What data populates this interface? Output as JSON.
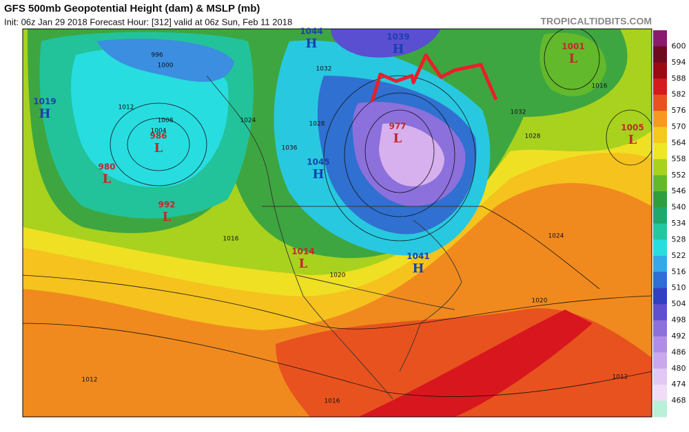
{
  "header": {
    "title": "GFS 500mb Geopotential Height (dam) & MSLP (mb)",
    "subtitle": "Init: 06z Jan 29 2018   Forecast Hour: [312]   valid at 06z Sun, Feb 11 2018",
    "site": "TROPICALTIDBITS.COM"
  },
  "colorbar": {
    "levels": [
      "600",
      "594",
      "588",
      "582",
      "576",
      "570",
      "564",
      "558",
      "552",
      "546",
      "540",
      "534",
      "528",
      "522",
      "516",
      "510",
      "504",
      "498",
      "492",
      "486",
      "480",
      "474",
      "468"
    ],
    "colors": [
      "#8a1a6e",
      "#6e0a20",
      "#9a0a14",
      "#d41a1e",
      "#e8521f",
      "#f59a1e",
      "#f5c81e",
      "#efe724",
      "#a8d21e",
      "#62b92c",
      "#2e9e3e",
      "#1fa86e",
      "#22c7a0",
      "#27dde0",
      "#34a8e8",
      "#2d6fd4",
      "#3040c0",
      "#6050d0",
      "#8c70dc",
      "#b08ee8",
      "#c9a8ee",
      "#e2c8f4",
      "#f0dcf7",
      "#b8f0d8"
    ]
  },
  "centers": [
    {
      "letter": "H",
      "value": "1019"
    },
    {
      "letter": "L",
      "value": "986"
    },
    {
      "letter": "L",
      "value": "980"
    },
    {
      "letter": "L",
      "value": "992"
    },
    {
      "letter": "H",
      "value": "1044"
    },
    {
      "letter": "H",
      "value": "1039"
    },
    {
      "letter": "L",
      "value": "1001"
    },
    {
      "letter": "L",
      "value": "1005"
    },
    {
      "letter": "L",
      "value": "977"
    },
    {
      "letter": "H",
      "value": "1045"
    },
    {
      "letter": "L",
      "value": "1014"
    },
    {
      "letter": "H",
      "value": "1041"
    }
  ],
  "isobar_labels": [
    "1012",
    "1008",
    "1004",
    "1000",
    "996",
    "1016",
    "1024",
    "1028",
    "1032",
    "1036",
    "1020",
    "1012",
    "1016",
    "1024",
    "1020",
    "1016",
    "1012",
    "1032",
    "1028"
  ]
}
